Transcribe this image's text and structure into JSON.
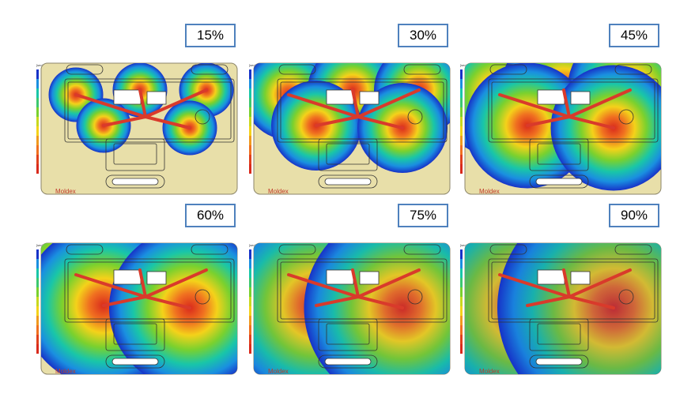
{
  "panels": [
    {
      "label": "15%",
      "spread": 0.15
    },
    {
      "label": "30%",
      "spread": 0.3
    },
    {
      "label": "45%",
      "spread": 0.45
    },
    {
      "label": "60%",
      "spread": 0.6
    },
    {
      "label": "75%",
      "spread": 0.75
    },
    {
      "label": "90%",
      "spread": 0.9
    }
  ],
  "brand": "Moldex",
  "scale_unit": "[sec]",
  "colors": {
    "part": "#e8dfa9",
    "part_stroke": "#8c866a",
    "runner": "#d93a2b",
    "label_border": "#4f81bd"
  }
}
